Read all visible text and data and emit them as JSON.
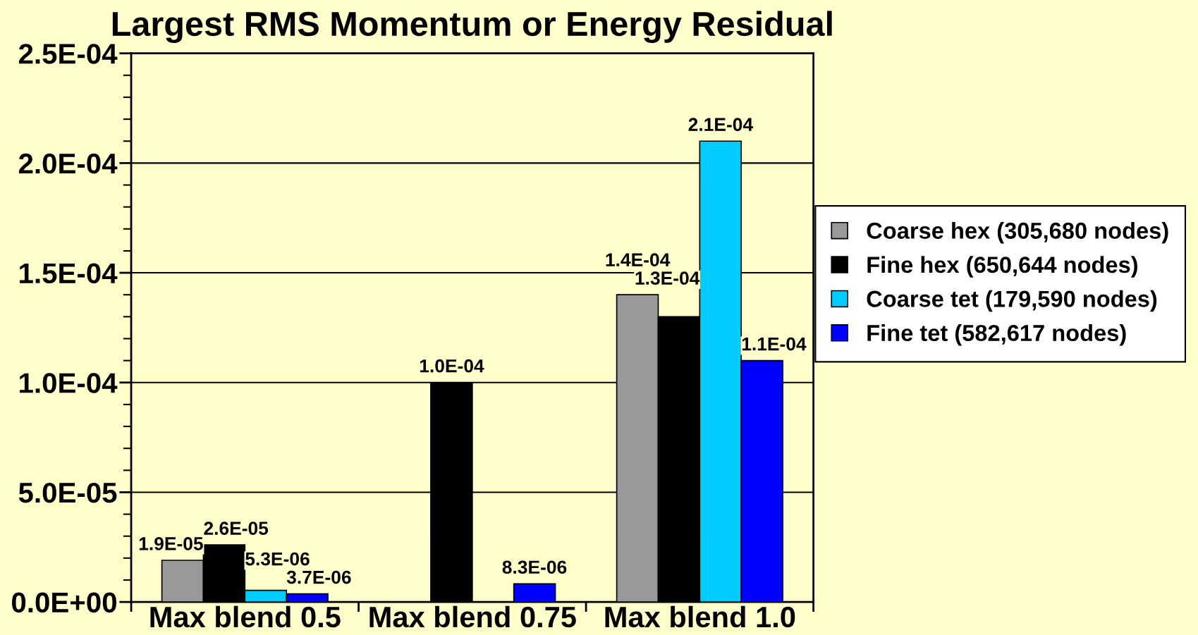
{
  "chart_data": {
    "type": "bar",
    "title": "Largest RMS Momentum or Energy Residual",
    "categories": [
      "Max blend 0.5",
      "Max blend 0.75",
      "Max blend 1.0"
    ],
    "series": [
      {
        "name": "Coarse hex (305,680 nodes)",
        "color": "#999999",
        "values": [
          1.9e-05,
          null,
          0.00014
        ],
        "value_labels": [
          "1.9E-05",
          null,
          "1.4E-04"
        ]
      },
      {
        "name": "Fine hex (650,644 nodes)",
        "color": "#000000",
        "values": [
          2.6e-05,
          0.0001,
          0.00013
        ],
        "value_labels": [
          "2.6E-05",
          "1.0E-04",
          "1.3E-04"
        ]
      },
      {
        "name": "Coarse tet (179,590 nodes)",
        "color": "#00ccff",
        "values": [
          5.3e-06,
          null,
          0.00021
        ],
        "value_labels": [
          "5.3E-06",
          null,
          "2.1E-04"
        ]
      },
      {
        "name": "Fine tet (582,617 nodes)",
        "color": "#0000ff",
        "values": [
          3.7e-06,
          8.3e-06,
          0.00011
        ],
        "value_labels": [
          "3.7E-06",
          "8.3E-06",
          "1.1E-04"
        ]
      }
    ],
    "ylim": [
      0,
      0.00025
    ],
    "yticks": [
      {
        "value": 0,
        "label": "0.0E+00"
      },
      {
        "value": 5e-05,
        "label": "5.0E-05"
      },
      {
        "value": 0.0001,
        "label": "1.0E-04"
      },
      {
        "value": 0.00015,
        "label": "1.5E-04"
      },
      {
        "value": 0.0002,
        "label": "2.0E-04"
      },
      {
        "value": 0.00025,
        "label": "2.5E-04"
      }
    ],
    "grid": "y",
    "legend": "right"
  }
}
